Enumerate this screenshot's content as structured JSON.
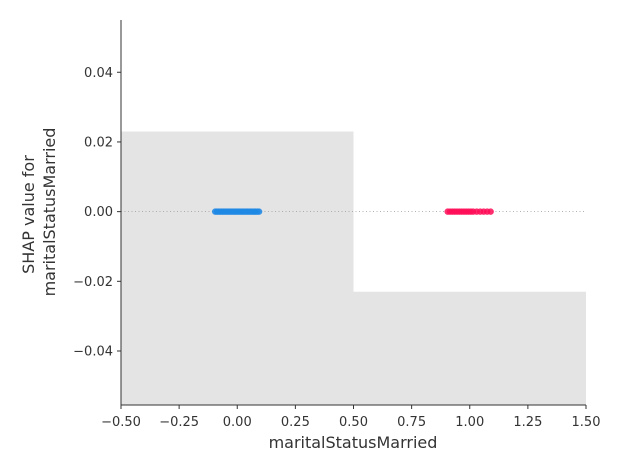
{
  "chart_data": {
    "type": "scatter",
    "title": "",
    "xlabel": "maritalStatusMarried",
    "ylabel_lines": [
      "SHAP value for",
      "maritalStatusMarried"
    ],
    "xlim": [
      -0.5,
      1.5
    ],
    "ylim": [
      -0.0555,
      0.055
    ],
    "x_ticks": [
      -0.5,
      -0.25,
      0.0,
      0.25,
      0.5,
      0.75,
      1.0,
      1.25,
      1.5
    ],
    "x_tick_labels": [
      "−0.50",
      "−0.25",
      "0.00",
      "0.25",
      "0.50",
      "0.75",
      "1.00",
      "1.25",
      "1.50"
    ],
    "y_ticks": [
      -0.04,
      -0.02,
      0.0,
      0.02,
      0.04
    ],
    "y_tick_labels": [
      "−0.04",
      "−0.02",
      "0.00",
      "0.02",
      "0.04"
    ],
    "grid": false,
    "zero_line": true,
    "background_bars": [
      {
        "x0": -0.5,
        "x1": 0.5,
        "y0": -0.0555,
        "y1": 0.023,
        "color": "#e4e4e4"
      },
      {
        "x0": 0.5,
        "x1": 1.5,
        "y0": -0.0555,
        "y1": -0.023,
        "color": "#e4e4e4"
      }
    ],
    "series": [
      {
        "feature_value": 0,
        "color": "#1e88e5",
        "points": [
          [
            -0.095,
            0
          ],
          [
            -0.088,
            0
          ],
          [
            -0.081,
            0
          ],
          [
            -0.074,
            0
          ],
          [
            -0.067,
            0
          ],
          [
            -0.06,
            0
          ],
          [
            -0.053,
            0
          ],
          [
            -0.046,
            0
          ],
          [
            -0.039,
            0
          ],
          [
            -0.032,
            0
          ],
          [
            -0.025,
            0
          ],
          [
            -0.018,
            0
          ],
          [
            -0.011,
            0
          ],
          [
            -0.004,
            0
          ],
          [
            0.003,
            0
          ],
          [
            0.01,
            0
          ],
          [
            0.017,
            0
          ],
          [
            0.024,
            0
          ],
          [
            0.031,
            0
          ],
          [
            0.038,
            0
          ],
          [
            0.045,
            0
          ],
          [
            0.052,
            0
          ],
          [
            0.059,
            0
          ],
          [
            0.066,
            0
          ],
          [
            0.073,
            0
          ],
          [
            0.08,
            0
          ],
          [
            0.087,
            0
          ],
          [
            0.094,
            0
          ]
        ]
      },
      {
        "feature_value": 1,
        "color": "#ff0d57",
        "points": [
          [
            0.905,
            0
          ],
          [
            0.915,
            0
          ],
          [
            0.925,
            0
          ],
          [
            0.935,
            0
          ],
          [
            0.945,
            0
          ],
          [
            0.955,
            0
          ],
          [
            0.965,
            0
          ],
          [
            0.975,
            0
          ],
          [
            0.985,
            0
          ],
          [
            0.995,
            0
          ],
          [
            1.005,
            0
          ],
          [
            1.015,
            0
          ],
          [
            1.03,
            0
          ],
          [
            1.045,
            0
          ],
          [
            1.06,
            0
          ],
          [
            1.075,
            0
          ],
          [
            1.09,
            0
          ]
        ]
      }
    ]
  }
}
